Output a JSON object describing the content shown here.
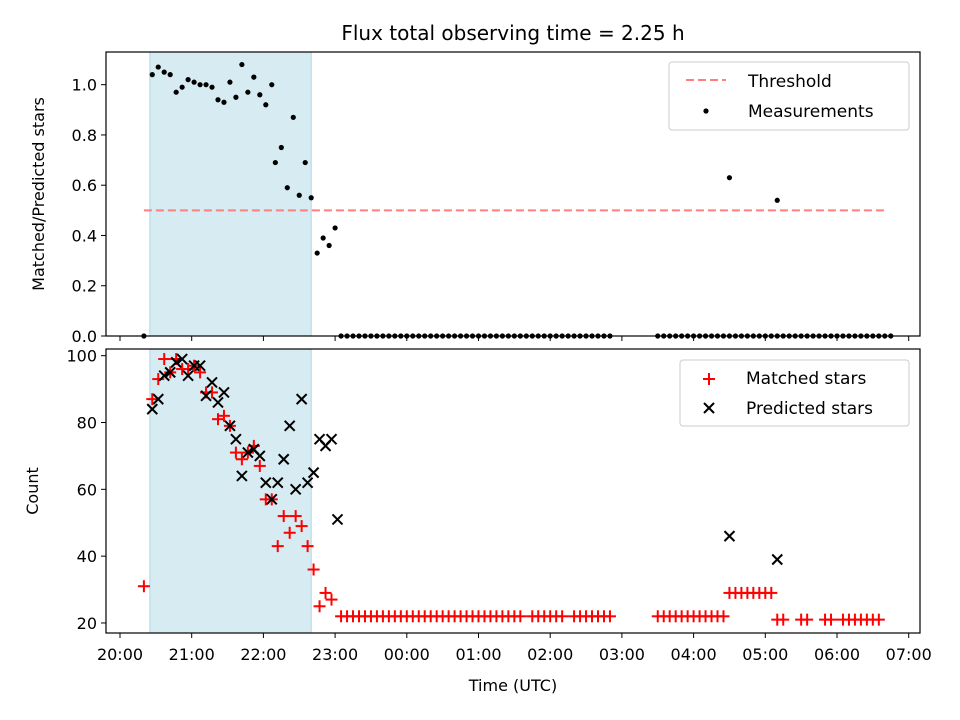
{
  "chart_data": {
    "title": "Flux total observing time = 2.25 h",
    "x_axis": {
      "label": "Time (UTC)",
      "range": [
        "20:00",
        "07:00"
      ],
      "ticks": [
        "20:00",
        "21:00",
        "22:00",
        "23:00",
        "00:00",
        "01:00",
        "02:00",
        "03:00",
        "04:00",
        "05:00",
        "06:00",
        "07:00"
      ]
    },
    "shaded_interval": {
      "start": "20:25",
      "end": "22:40",
      "color": "#add8e6"
    },
    "panels": [
      {
        "type": "scatter",
        "ylabel": "Matched/Predicted stars",
        "ylim": [
          0,
          1.13
        ],
        "yticks": [
          "0.0",
          "0.2",
          "0.4",
          "0.6",
          "0.8",
          "1.0"
        ],
        "legend_position": "top-right",
        "threshold": {
          "name": "Threshold",
          "value": 0.5,
          "x_range": [
            "20:20",
            "06:40"
          ],
          "color": "#ff7f7f",
          "style": "dashed"
        },
        "series": [
          {
            "name": "Measurements",
            "color": "#000000",
            "x": [
              "20:20",
              "20:27",
              "20:32",
              "20:37",
              "20:42",
              "20:47",
              "20:52",
              "20:57",
              "21:02",
              "21:07",
              "21:12",
              "21:17",
              "21:22",
              "21:27",
              "21:32",
              "21:37",
              "21:42",
              "21:47",
              "21:52",
              "21:57",
              "22:02",
              "22:07",
              "22:10",
              "22:15",
              "22:20",
              "22:25",
              "22:30",
              "22:35",
              "22:40",
              "22:45",
              "22:50",
              "22:55",
              "23:00"
            ],
            "y": [
              0.0,
              1.04,
              1.07,
              1.05,
              1.04,
              0.97,
              0.99,
              1.02,
              1.01,
              1.0,
              1.0,
              0.99,
              0.94,
              0.93,
              1.01,
              0.95,
              1.08,
              0.97,
              1.03,
              0.96,
              0.92,
              1.0,
              0.69,
              0.75,
              0.59,
              0.87,
              0.56,
              0.69,
              0.55,
              0.33,
              0.39,
              0.36,
              0.43
            ]
          },
          {
            "name": "Measurements",
            "color": "#000000",
            "x_start": "23:05",
            "x_step_minutes": 5,
            "count": 46,
            "y_value": 0.0
          },
          {
            "name": "Measurements",
            "color": "#000000",
            "x_start": "03:30",
            "x_step_minutes": 5,
            "count": 40,
            "y_value": 0.0
          },
          {
            "name": "Measurements",
            "color": "#000000",
            "x": [
              "04:30",
              "05:10"
            ],
            "y": [
              0.63,
              0.54
            ]
          }
        ]
      },
      {
        "type": "scatter",
        "ylabel": "Count",
        "ylim": [
          17,
          102
        ],
        "yticks": [
          "20",
          "40",
          "60",
          "80",
          "100"
        ],
        "legend_position": "top-right",
        "series": [
          {
            "name": "Matched stars",
            "marker": "plus",
            "color": "#ff0000",
            "x": [
              "20:20",
              "20:27",
              "20:32",
              "20:37",
              "20:42",
              "20:47",
              "20:52",
              "20:57",
              "21:02",
              "21:07",
              "21:12",
              "21:17",
              "21:22",
              "21:27",
              "21:32",
              "21:37",
              "21:42",
              "21:47",
              "21:52",
              "21:57",
              "22:02",
              "22:07",
              "22:12",
              "22:17",
              "22:22",
              "22:27",
              "22:32",
              "22:37",
              "22:42",
              "22:47",
              "22:52",
              "22:57",
              "23:05",
              "23:10",
              "23:15",
              "23:20",
              "23:25",
              "23:30",
              "23:35",
              "23:40",
              "23:45",
              "23:50",
              "23:55",
              "00:00",
              "00:05",
              "00:10",
              "00:15",
              "00:20",
              "00:25",
              "00:30",
              "00:35",
              "00:40",
              "00:45",
              "00:50",
              "00:55",
              "01:00",
              "01:05",
              "01:10",
              "01:15",
              "01:20",
              "01:25",
              "01:30",
              "01:35",
              "01:45",
              "01:50",
              "01:55",
              "02:00",
              "02:05",
              "02:10",
              "02:20",
              "02:25",
              "02:30",
              "02:35",
              "02:40",
              "02:45",
              "02:50",
              "03:30",
              "03:35",
              "03:40",
              "03:45",
              "03:50",
              "03:55",
              "04:00",
              "04:05",
              "04:10",
              "04:15",
              "04:20",
              "04:25",
              "04:30",
              "04:35",
              "04:40",
              "04:45",
              "04:50",
              "04:55",
              "05:00",
              "05:05",
              "05:10",
              "05:15",
              "05:30",
              "05:35",
              "05:50",
              "05:55",
              "06:05",
              "06:10",
              "06:15",
              "06:20",
              "06:25",
              "06:30",
              "06:35"
            ],
            "y": [
              31,
              87,
              93,
              99,
              95,
              99,
              96,
              96,
              97,
              95,
              89,
              89,
              81,
              82,
              79,
              71,
              69,
              71,
              73,
              67,
              57,
              57,
              43,
              52,
              47,
              52,
              49,
              43,
              36,
              25,
              29,
              27,
              22,
              22,
              22,
              22,
              22,
              22,
              22,
              22,
              22,
              22,
              22,
              22,
              22,
              22,
              22,
              22,
              22,
              22,
              22,
              22,
              22,
              22,
              22,
              22,
              22,
              22,
              22,
              22,
              22,
              22,
              22,
              22,
              22,
              22,
              22,
              22,
              22,
              22,
              22,
              22,
              22,
              22,
              22,
              22,
              22,
              22,
              22,
              22,
              22,
              22,
              22,
              22,
              22,
              22,
              22,
              22,
              29,
              29,
              29,
              29,
              29,
              29,
              29,
              29,
              21,
              21,
              21,
              21,
              21,
              21,
              21,
              21,
              21,
              21,
              21,
              21,
              21
            ]
          },
          {
            "name": "Predicted stars",
            "marker": "x",
            "color": "#000000",
            "x": [
              "20:27",
              "20:32",
              "20:37",
              "20:42",
              "20:47",
              "20:52",
              "20:57",
              "21:02",
              "21:07",
              "21:12",
              "21:17",
              "21:22",
              "21:27",
              "21:32",
              "21:37",
              "21:42",
              "21:47",
              "21:52",
              "21:57",
              "22:02",
              "22:07",
              "22:12",
              "22:17",
              "22:22",
              "22:27",
              "22:32",
              "22:37",
              "22:42",
              "22:47",
              "22:52",
              "22:57",
              "23:02",
              "04:30",
              "05:10"
            ],
            "y": [
              84,
              87,
              94,
              95,
              98,
              99,
              94,
              97,
              97,
              88,
              92,
              86,
              89,
              79,
              75,
              64,
              71,
              72,
              70,
              62,
              57,
              62,
              69,
              79,
              60,
              87,
              62,
              65,
              75,
              73,
              75,
              51,
              46,
              39
            ]
          }
        ]
      }
    ]
  }
}
